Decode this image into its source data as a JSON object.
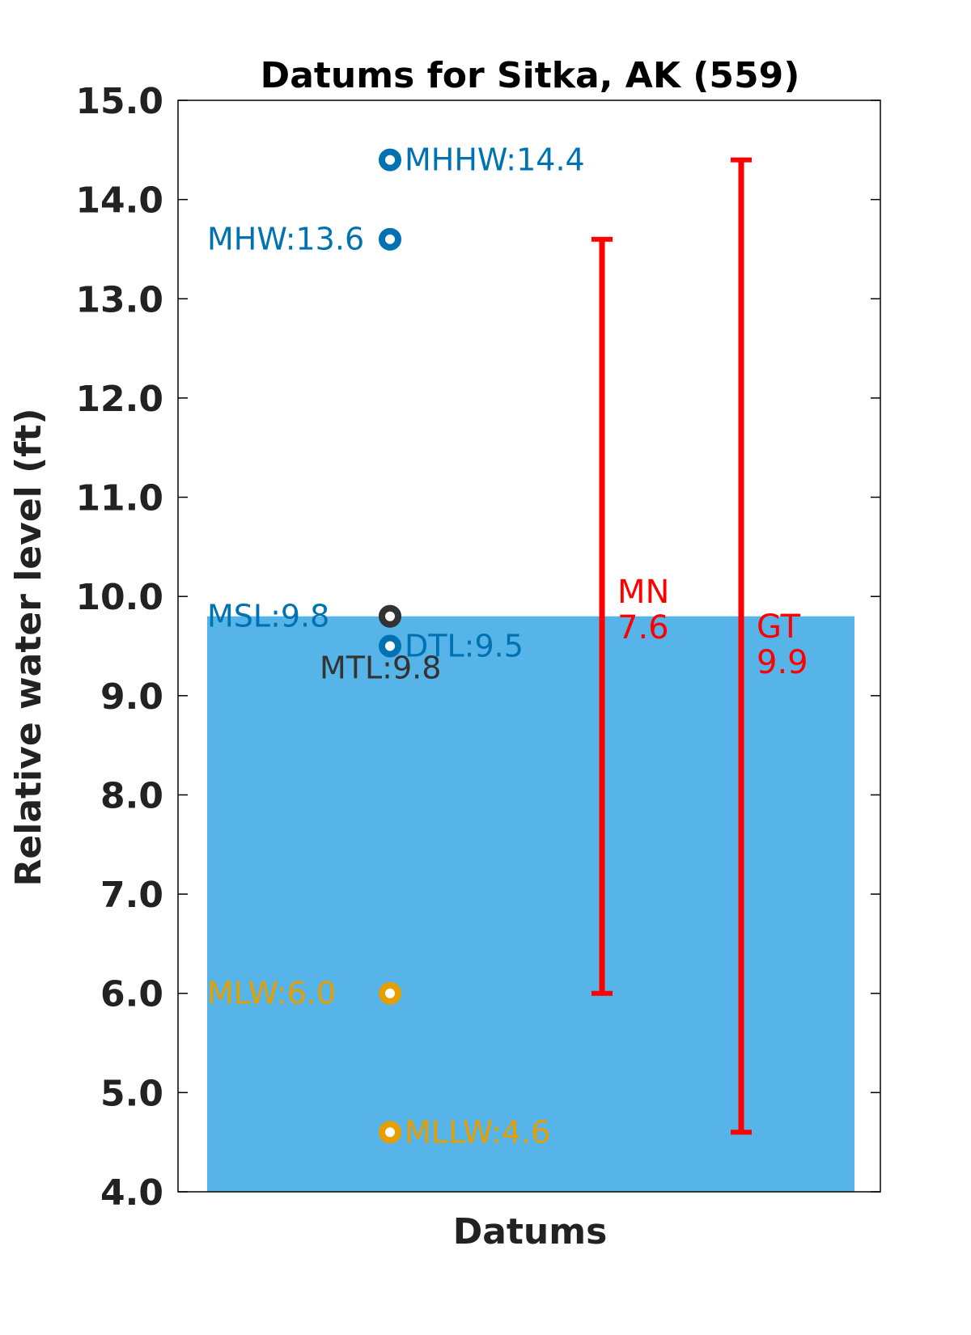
{
  "chart_data": {
    "type": "bar",
    "title": "Datums for Sitka, AK (559)",
    "xlabel": "Datums",
    "ylabel": "Relative water level (ft)",
    "ylim": [
      4.0,
      15.0
    ],
    "yticks": [
      "4.0",
      "5.0",
      "6.0",
      "7.0",
      "8.0",
      "9.0",
      "10.0",
      "11.0",
      "12.0",
      "13.0",
      "14.0",
      "15.0"
    ],
    "grid": false,
    "bar": {
      "value": 9.8,
      "color": "#56b4e9"
    },
    "datums": [
      {
        "name": "MHHW",
        "value": 14.4,
        "label": "MHHW:14.4",
        "color": "#0072b2",
        "label_side": "right"
      },
      {
        "name": "MHW",
        "value": 13.6,
        "label": "MHW:13.6",
        "color": "#0072b2",
        "label_side": "left"
      },
      {
        "name": "MSL",
        "value": 9.8,
        "label": "MSL:9.8",
        "color": "#0072b2",
        "label_side": "left"
      },
      {
        "name": "MTL",
        "value": 9.8,
        "label": "MTL:9.8",
        "color": "#333333",
        "label_side": "below"
      },
      {
        "name": "DTL",
        "value": 9.5,
        "label": "DTL:9.5",
        "color": "#0072b2",
        "label_side": "right"
      },
      {
        "name": "MLW",
        "value": 6.0,
        "label": "MLW:6.0",
        "color": "#e69f00",
        "label_side": "left"
      },
      {
        "name": "MLLW",
        "value": 4.6,
        "label": "MLLW:4.6",
        "color": "#e69f00",
        "label_side": "right"
      }
    ],
    "ranges": [
      {
        "name": "MN",
        "value": "7.6",
        "low": 6.0,
        "high": 13.6,
        "color": "#ff0000"
      },
      {
        "name": "GT",
        "value": "9.9",
        "low": 4.6,
        "high": 14.4,
        "color": "#ff0000"
      }
    ]
  }
}
